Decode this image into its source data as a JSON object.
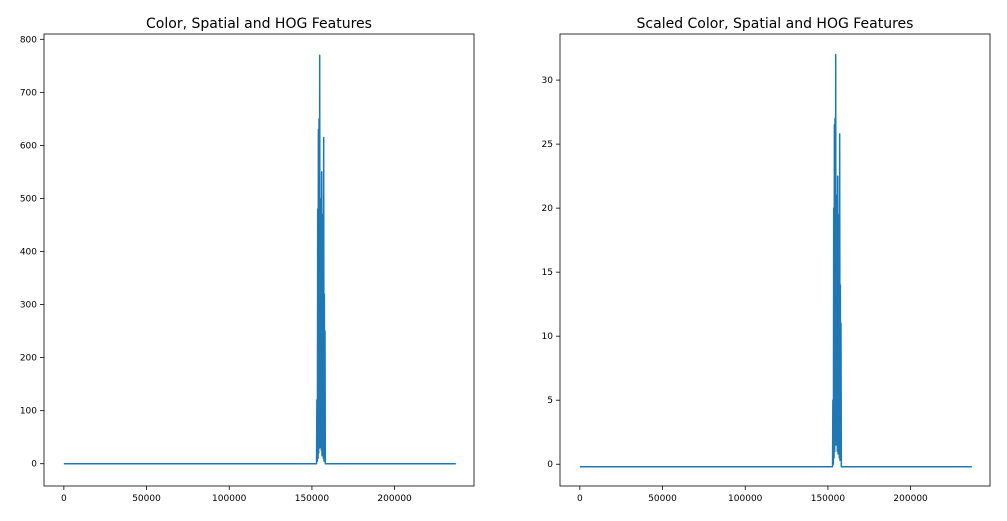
{
  "chart_data": [
    {
      "type": "line",
      "title": "Color, Spatial and HOG Features",
      "xlabel": "",
      "ylabel": "",
      "xlim": [
        -12000,
        248000
      ],
      "ylim": [
        -42,
        810
      ],
      "xticks": [
        0,
        50000,
        100000,
        150000,
        200000
      ],
      "xtick_labels": [
        "0",
        "50000",
        "100000",
        "150000",
        "200000"
      ],
      "yticks": [
        0,
        100,
        200,
        300,
        400,
        500,
        600,
        700,
        800
      ],
      "ytick_labels": [
        "0",
        "100",
        "200",
        "300",
        "400",
        "500",
        "600",
        "700",
        "800"
      ],
      "grid": false,
      "series_color": "#1f77b4",
      "x": [
        0,
        152800,
        153000,
        153300,
        153500,
        153700,
        153900,
        154100,
        154300,
        154500,
        154700,
        154900,
        155100,
        155300,
        155500,
        155700,
        155900,
        156100,
        156300,
        156500,
        156700,
        156900,
        157100,
        157300,
        157500,
        157700,
        157900,
        158100,
        158400,
        237000
      ],
      "y": [
        0,
        0,
        120,
        5,
        480,
        10,
        630,
        20,
        650,
        40,
        770,
        30,
        500,
        60,
        480,
        25,
        550,
        15,
        330,
        60,
        470,
        10,
        615,
        5,
        320,
        40,
        250,
        0,
        0,
        0
      ]
    },
    {
      "type": "line",
      "title": "Scaled Color, Spatial and HOG Features",
      "xlabel": "",
      "ylabel": "",
      "xlim": [
        -12000,
        248000
      ],
      "ylim": [
        -1.7,
        33.6
      ],
      "xticks": [
        0,
        50000,
        100000,
        150000,
        200000
      ],
      "xtick_labels": [
        "0",
        "50000",
        "100000",
        "150000",
        "200000"
      ],
      "yticks": [
        0,
        5,
        10,
        15,
        20,
        25,
        30
      ],
      "ytick_labels": [
        "0",
        "5",
        "10",
        "15",
        "20",
        "25",
        "30"
      ],
      "grid": false,
      "series_color": "#1f77b4",
      "x": [
        0,
        152800,
        153000,
        153300,
        153500,
        153700,
        153900,
        154100,
        154300,
        154500,
        154700,
        154900,
        155100,
        155300,
        155500,
        155700,
        155900,
        156100,
        156300,
        156500,
        156700,
        156900,
        157100,
        157300,
        157500,
        157700,
        157900,
        158100,
        158400,
        237000
      ],
      "y": [
        -0.2,
        -0.2,
        5,
        0,
        20,
        0.5,
        26.5,
        1,
        27,
        2,
        32,
        1.5,
        21,
        3,
        20,
        1,
        22.5,
        0.8,
        14,
        2.5,
        19.5,
        0.5,
        25.8,
        0.3,
        14,
        2,
        11,
        -0.2,
        -0.2,
        -0.2
      ]
    }
  ]
}
